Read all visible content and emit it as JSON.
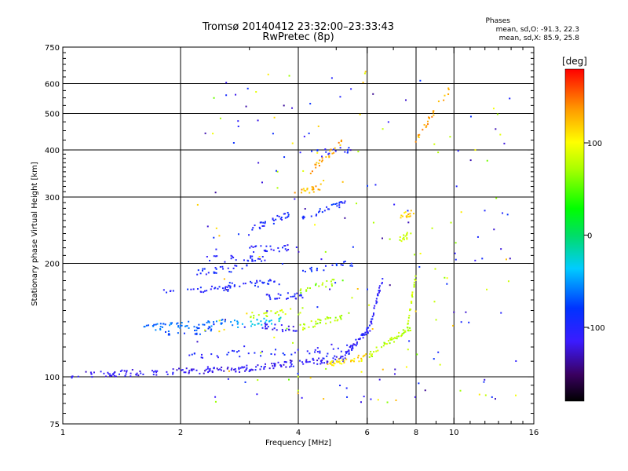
{
  "header": {
    "title_line1": "Tromsø 20140412 23:32:00–23:33:43",
    "title_line2": "RwPretec (8p)"
  },
  "stats": {
    "title": "Phases",
    "o_mode": "mean, sd,O: -91.3, 22.3",
    "x_mode": "mean, sd,X: 85.9, 25.8"
  },
  "colorbar": {
    "unit_label": "[deg]",
    "ticks": [
      {
        "value": 100,
        "label": "100"
      },
      {
        "value": 0,
        "label": "0"
      },
      {
        "value": -100,
        "label": "-100"
      }
    ],
    "range": [
      -180,
      180
    ]
  },
  "chart_data": {
    "type": "scatter",
    "title": "Tromsø 20140412 23:32:00–23:33:43",
    "subtitle": "RwPretec (8p)",
    "xlabel": "Frequency [MHz]",
    "ylabel": "Stationary phase Virtual Height [km]",
    "x_scale": "log",
    "y_scale": "log",
    "xlim": [
      1,
      16
    ],
    "ylim": [
      75,
      750
    ],
    "x_ticks": [
      1,
      2,
      4,
      6,
      8,
      10,
      16
    ],
    "y_ticks": [
      75,
      100,
      200,
      300,
      400,
      500,
      600,
      750
    ],
    "x_grid": [
      2,
      4,
      6,
      8,
      10
    ],
    "y_grid": [
      100,
      200,
      300,
      400,
      500,
      600
    ],
    "grid": true,
    "color_scale": "phase (deg)",
    "traces": [
      {
        "x0": 1.05,
        "x1": 2.9,
        "h0": 101,
        "h1": 105,
        "phase": -115,
        "n": 110
      },
      {
        "x0": 2.9,
        "x1": 5.2,
        "h0": 105,
        "h1": 112,
        "phase": -112,
        "n": 80
      },
      {
        "x0": 5.2,
        "x1": 6.1,
        "h0": 112,
        "h1": 135,
        "phase": -108,
        "n": 50
      },
      {
        "x0": 6.1,
        "x1": 6.6,
        "h0": 135,
        "h1": 185,
        "phase": -105,
        "n": 30
      },
      {
        "x0": 4.8,
        "x1": 6.0,
        "h0": 108,
        "h1": 113,
        "phase": 110,
        "n": 35
      },
      {
        "x0": 6.0,
        "x1": 7.8,
        "h0": 113,
        "h1": 135,
        "phase": 75,
        "n": 45
      },
      {
        "x0": 7.6,
        "x1": 8.0,
        "h0": 135,
        "h1": 185,
        "phase": 80,
        "n": 25
      },
      {
        "x0": 2.1,
        "x1": 5.3,
        "h0": 114,
        "h1": 118,
        "phase": -100,
        "n": 40
      },
      {
        "x0": 1.6,
        "x1": 2.8,
        "h0": 135,
        "h1": 140,
        "phase": -60,
        "n": 60
      },
      {
        "x0": 2.8,
        "x1": 3.8,
        "h0": 138,
        "h1": 142,
        "phase": -30,
        "n": 25
      },
      {
        "x0": 3.2,
        "x1": 4.0,
        "h0": 137,
        "h1": 133,
        "phase": -110,
        "n": 25
      },
      {
        "x0": 1.8,
        "x1": 2.4,
        "h0": 130,
        "h1": 133,
        "phase": -75,
        "n": 20
      },
      {
        "x0": 4.0,
        "x1": 5.2,
        "h0": 135,
        "h1": 145,
        "phase": 75,
        "n": 35
      },
      {
        "x0": 3.0,
        "x1": 4.2,
        "h0": 145,
        "h1": 150,
        "phase": 80,
        "n": 25
      },
      {
        "x0": 1.8,
        "x1": 2.8,
        "h0": 170,
        "h1": 172,
        "phase": -100,
        "n": 30
      },
      {
        "x0": 2.6,
        "x1": 3.6,
        "h0": 175,
        "h1": 178,
        "phase": -95,
        "n": 30
      },
      {
        "x0": 3.3,
        "x1": 4.2,
        "h0": 162,
        "h1": 165,
        "phase": -100,
        "n": 25
      },
      {
        "x0": 4.0,
        "x1": 5.2,
        "h0": 170,
        "h1": 180,
        "phase": 65,
        "n": 20
      },
      {
        "x0": 2.2,
        "x1": 3.0,
        "h0": 190,
        "h1": 195,
        "phase": -95,
        "n": 25
      },
      {
        "x0": 2.3,
        "x1": 3.3,
        "h0": 205,
        "h1": 207,
        "phase": -100,
        "n": 25
      },
      {
        "x0": 3.0,
        "x1": 4.0,
        "h0": 218,
        "h1": 220,
        "phase": -105,
        "n": 25
      },
      {
        "x0": 4.0,
        "x1": 5.5,
        "h0": 190,
        "h1": 200,
        "phase": -90,
        "n": 20
      },
      {
        "x0": 3.0,
        "x1": 3.8,
        "h0": 245,
        "h1": 270,
        "phase": -95,
        "n": 30
      },
      {
        "x0": 4.0,
        "x1": 5.3,
        "h0": 260,
        "h1": 290,
        "phase": -90,
        "n": 30
      },
      {
        "x0": 3.9,
        "x1": 4.6,
        "h0": 305,
        "h1": 320,
        "phase": 125,
        "n": 20
      },
      {
        "x0": 4.3,
        "x1": 5.2,
        "h0": 350,
        "h1": 420,
        "phase": 130,
        "n": 25
      },
      {
        "x0": 4.2,
        "x1": 5.4,
        "h0": 390,
        "h1": 400,
        "phase": -95,
        "n": 15
      },
      {
        "x0": 7.2,
        "x1": 7.8,
        "h0": 230,
        "h1": 240,
        "phase": 80,
        "n": 15
      },
      {
        "x0": 7.3,
        "x1": 7.9,
        "h0": 265,
        "h1": 275,
        "phase": 120,
        "n": 15
      },
      {
        "x0": 7.8,
        "x1": 10.0,
        "h0": 400,
        "h1": 600,
        "phase": 130,
        "n": 25
      }
    ],
    "scatter": {
      "x_range": [
        2.2,
        14.5
      ],
      "h_range": [
        85,
        650
      ],
      "n": 220
    }
  }
}
